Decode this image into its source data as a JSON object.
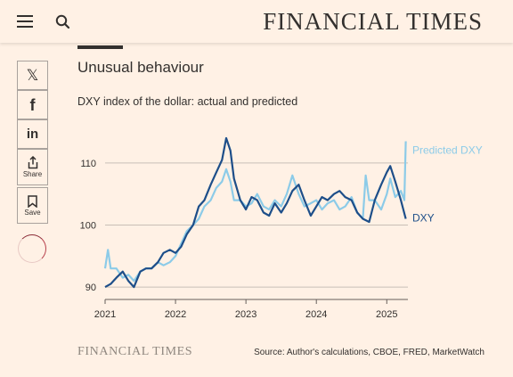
{
  "header": {
    "masthead": "FINANCIAL TIMES",
    "menu_icon": "hamburger-menu-icon",
    "search_icon": "search-icon"
  },
  "share": {
    "x_icon": "x-logo-icon",
    "facebook_icon": "facebook-icon",
    "linkedin_icon": "linkedin-icon",
    "share_label": "Share",
    "save_label": "Save"
  },
  "article": {
    "title": "Unusual behaviour"
  },
  "footer": {
    "logo": "FINANCIAL TIMES",
    "source": "Source: Author's calculations, CBOE, FRED, MarketWatch"
  },
  "colors": {
    "background": "#fff1e5",
    "dxy": "#1d4e89",
    "predicted": "#8ccbe8",
    "text": "#33302e",
    "grid": "#c8bfb6"
  },
  "chart_data": {
    "type": "line",
    "title": "DXY index of the dollar: actual and predicted",
    "xlabel": "",
    "ylabel": "",
    "xlim": [
      2021.0,
      2025.3
    ],
    "ylim": [
      88,
      114
    ],
    "yticks": [
      90,
      100,
      110
    ],
    "xticks": [
      "2021",
      "2022",
      "2023",
      "2024",
      "2025"
    ],
    "grid": true,
    "legend": "direct labels at line ends",
    "series": [
      {
        "name": "DXY",
        "color": "#1d4e89",
        "x": [
          2021.0,
          2021.08,
          2021.16,
          2021.25,
          2021.33,
          2021.41,
          2021.5,
          2021.58,
          2021.66,
          2021.75,
          2021.83,
          2021.92,
          2022.0,
          2022.08,
          2022.16,
          2022.25,
          2022.33,
          2022.41,
          2022.5,
          2022.58,
          2022.66,
          2022.72,
          2022.78,
          2022.83,
          2022.92,
          2023.0,
          2023.08,
          2023.16,
          2023.25,
          2023.33,
          2023.41,
          2023.5,
          2023.58,
          2023.66,
          2023.75,
          2023.83,
          2023.92,
          2024.0,
          2024.08,
          2024.16,
          2024.25,
          2024.33,
          2024.41,
          2024.5,
          2024.58,
          2024.66,
          2024.75,
          2024.83,
          2024.92,
          2025.0,
          2025.05,
          2025.12,
          2025.2,
          2025.27
        ],
        "y": [
          90,
          90.5,
          91.5,
          92.5,
          91,
          90,
          92.5,
          93,
          93,
          94,
          95.5,
          96,
          95.5,
          96.5,
          98.5,
          100,
          103,
          104,
          106.5,
          108.5,
          110.5,
          114,
          112,
          107.5,
          104,
          102.5,
          104.5,
          104,
          102,
          101.5,
          103.5,
          102,
          103.5,
          105.5,
          106.5,
          104,
          101.5,
          103,
          104.5,
          104,
          105,
          105.5,
          104.5,
          104,
          102,
          101,
          100.5,
          104,
          106.5,
          108.5,
          109.5,
          107,
          104,
          101
        ]
      },
      {
        "name": "Predicted DXY",
        "color": "#8ccbe8",
        "x": [
          2021.0,
          2021.04,
          2021.08,
          2021.16,
          2021.25,
          2021.33,
          2021.41,
          2021.5,
          2021.58,
          2021.66,
          2021.75,
          2021.83,
          2021.92,
          2022.0,
          2022.08,
          2022.16,
          2022.25,
          2022.33,
          2022.41,
          2022.5,
          2022.58,
          2022.66,
          2022.72,
          2022.78,
          2022.83,
          2022.92,
          2023.0,
          2023.08,
          2023.16,
          2023.25,
          2023.33,
          2023.41,
          2023.5,
          2023.58,
          2023.66,
          2023.75,
          2023.83,
          2023.92,
          2024.0,
          2024.08,
          2024.16,
          2024.25,
          2024.33,
          2024.41,
          2024.5,
          2024.58,
          2024.66,
          2024.7,
          2024.75,
          2024.83,
          2024.92,
          2025.0,
          2025.05,
          2025.12,
          2025.2,
          2025.25,
          2025.27
        ],
        "y": [
          93,
          96,
          93,
          93,
          91.5,
          92,
          91,
          92.5,
          93,
          93,
          94,
          93.5,
          94,
          95,
          97,
          99,
          100,
          101,
          103,
          104,
          106,
          107,
          109,
          107,
          104,
          104,
          103,
          103.5,
          105,
          103,
          102.5,
          104,
          103,
          105,
          108,
          105,
          103,
          103.5,
          104,
          102.5,
          103.5,
          104,
          102.5,
          103,
          104.5,
          102,
          101,
          108,
          104,
          104,
          102.5,
          105,
          107.5,
          104.5,
          105.5,
          104,
          113.5
        ]
      }
    ]
  }
}
